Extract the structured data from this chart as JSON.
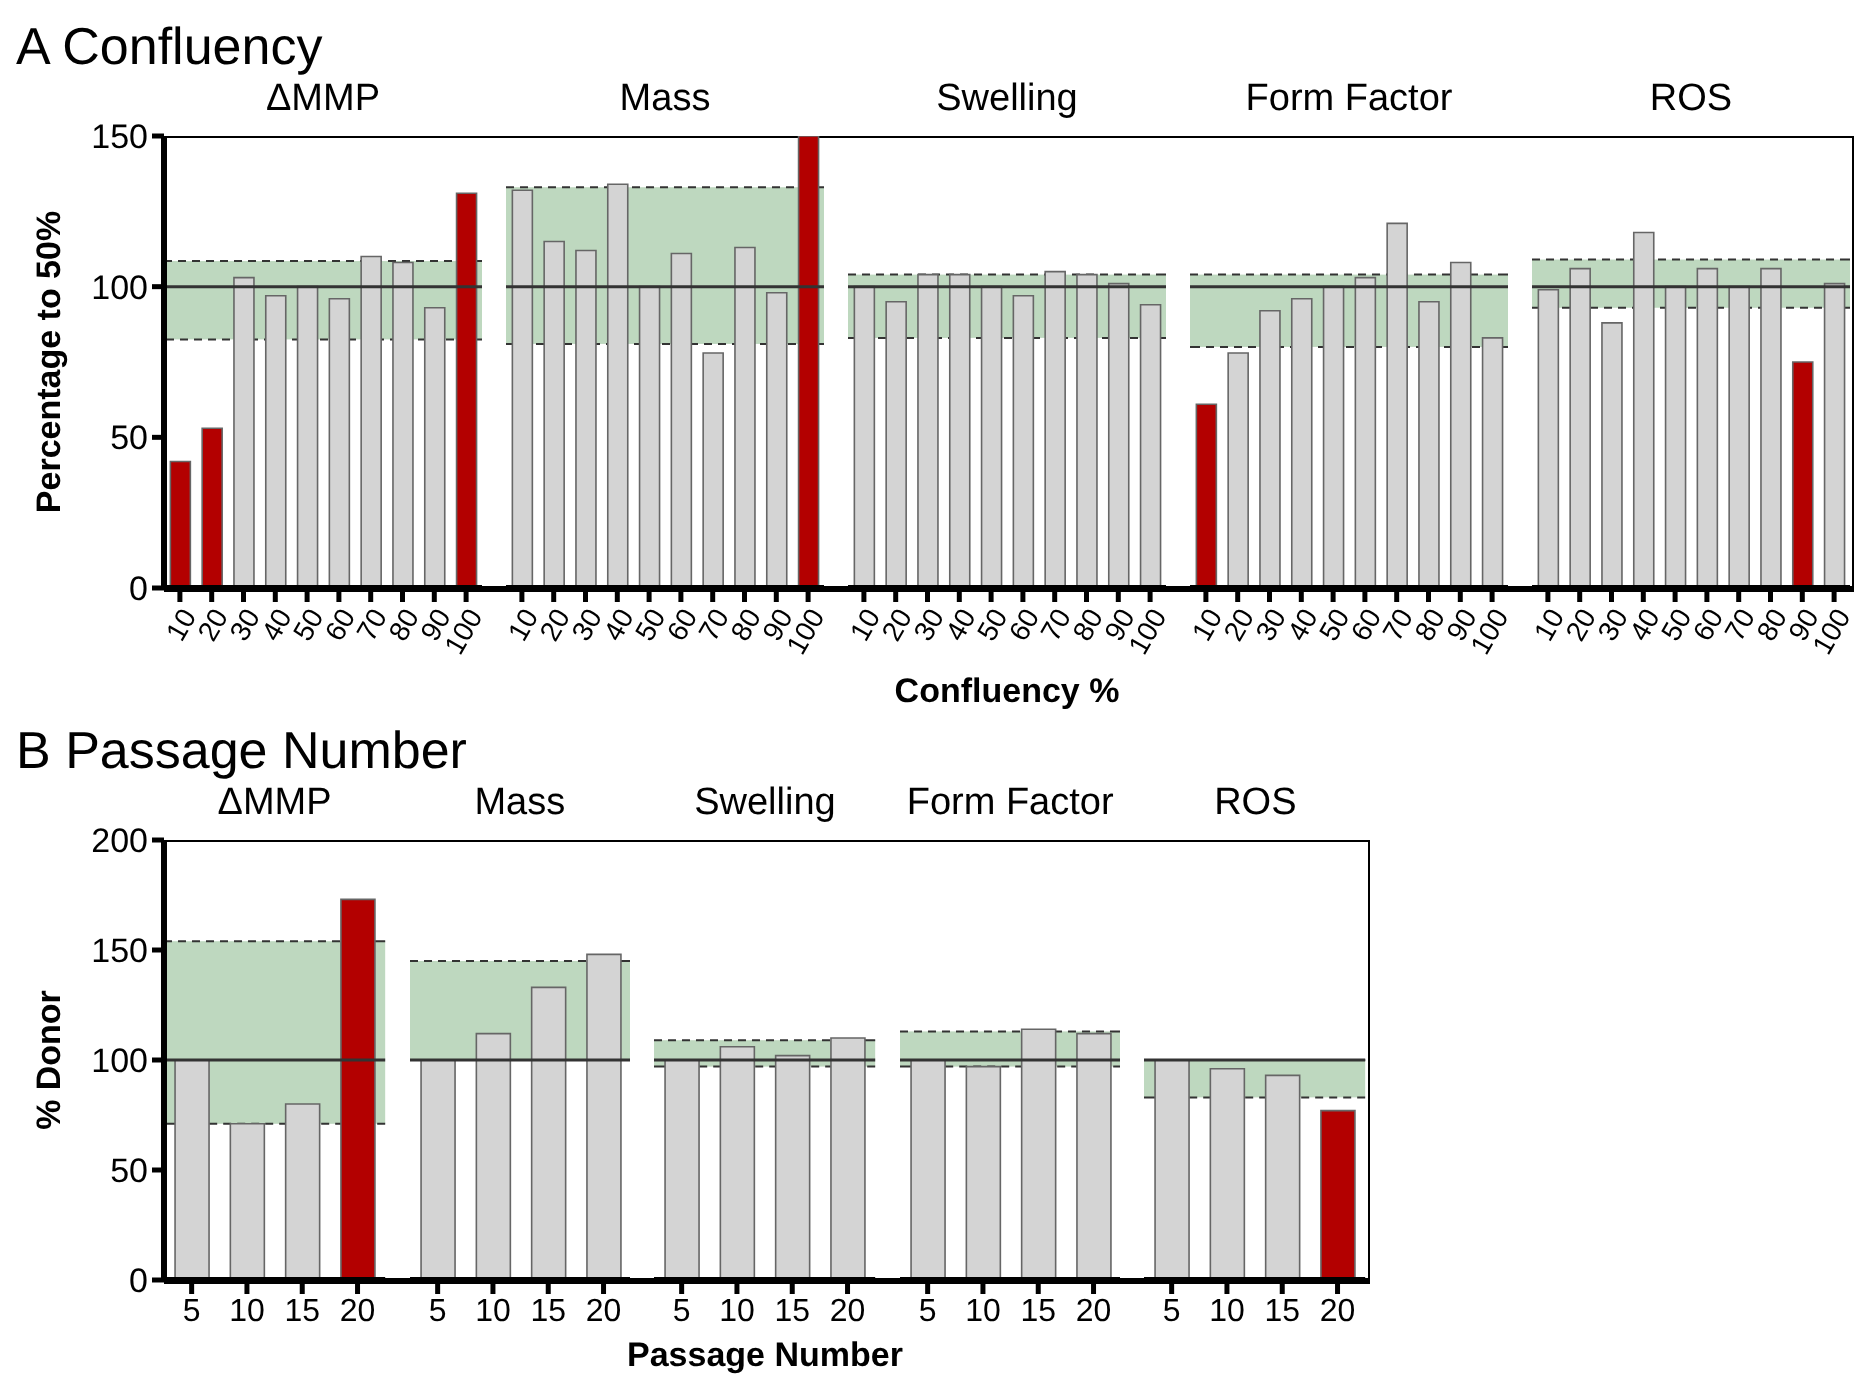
{
  "chart_data": [
    {
      "type": "other",
      "title": "A Confluency"
    },
    {
      "type": "bar",
      "title": "ΔMMP",
      "ylabel": "Percentage to 50%",
      "categories": [
        "10",
        "20",
        "30",
        "40",
        "50",
        "60",
        "70",
        "80",
        "90",
        "100"
      ],
      "values": [
        42,
        53,
        103,
        97,
        100,
        96,
        110,
        108,
        93,
        131
      ],
      "colors": [
        "#b30000",
        "#b30000",
        "#d4d4d4",
        "#d4d4d4",
        "#d4d4d4",
        "#d4d4d4",
        "#d4d4d4",
        "#d4d4d4",
        "#d4d4d4",
        "#b30000"
      ],
      "ylim": [
        0,
        150
      ],
      "yticks": [
        0,
        50,
        100,
        150
      ],
      "ref_lines": [
        {
          "axis": "y",
          "value": 100,
          "color": "#333333"
        }
      ],
      "bands": [
        {
          "axis": "y",
          "from": 82.5,
          "to": 108.5,
          "color": "#bed8bf"
        }
      ]
    },
    {
      "type": "bar",
      "title": "Mass",
      "categories": [
        "10",
        "20",
        "30",
        "40",
        "50",
        "60",
        "70",
        "80",
        "90",
        "100"
      ],
      "values": [
        132,
        115,
        112,
        134,
        100,
        111,
        78,
        113,
        98,
        150
      ],
      "colors": [
        "#d4d4d4",
        "#d4d4d4",
        "#d4d4d4",
        "#d4d4d4",
        "#d4d4d4",
        "#d4d4d4",
        "#d4d4d4",
        "#d4d4d4",
        "#d4d4d4",
        "#b30000"
      ],
      "ylim": [
        0,
        150
      ],
      "tick_labels": "x",
      "ref_lines": [
        {
          "axis": "y",
          "value": 100,
          "color": "#333333"
        }
      ],
      "bands": [
        {
          "axis": "y",
          "from": 81,
          "to": 133,
          "color": "#bed8bf"
        }
      ]
    },
    {
      "type": "bar",
      "title": "Swelling",
      "xlabel": "Confluency %",
      "categories": [
        "10",
        "20",
        "30",
        "40",
        "50",
        "60",
        "70",
        "80",
        "90",
        "100"
      ],
      "values": [
        100,
        95,
        104,
        104,
        100,
        97,
        105,
        104,
        101,
        94
      ],
      "colors": [
        "#d4d4d4",
        "#d4d4d4",
        "#d4d4d4",
        "#d4d4d4",
        "#d4d4d4",
        "#d4d4d4",
        "#d4d4d4",
        "#d4d4d4",
        "#d4d4d4",
        "#d4d4d4"
      ],
      "ylim": [
        0,
        150
      ],
      "tick_labels": "x",
      "ref_lines": [
        {
          "axis": "y",
          "value": 100,
          "color": "#333333"
        }
      ],
      "bands": [
        {
          "axis": "y",
          "from": 83,
          "to": 104,
          "color": "#bed8bf"
        }
      ]
    },
    {
      "type": "bar",
      "title": "Form Factor",
      "categories": [
        "10",
        "20",
        "30",
        "40",
        "50",
        "60",
        "70",
        "80",
        "90",
        "100"
      ],
      "values": [
        61,
        78,
        92,
        96,
        100,
        103,
        121,
        95,
        108,
        83
      ],
      "colors": [
        "#b30000",
        "#d4d4d4",
        "#d4d4d4",
        "#d4d4d4",
        "#d4d4d4",
        "#d4d4d4",
        "#d4d4d4",
        "#d4d4d4",
        "#d4d4d4",
        "#d4d4d4"
      ],
      "ylim": [
        0,
        150
      ],
      "tick_labels": "x",
      "ref_lines": [
        {
          "axis": "y",
          "value": 100,
          "color": "#333333"
        }
      ],
      "bands": [
        {
          "axis": "y",
          "from": 80,
          "to": 104,
          "color": "#bed8bf"
        }
      ]
    },
    {
      "type": "bar",
      "title": "ROS",
      "categories": [
        "10",
        "20",
        "30",
        "40",
        "50",
        "60",
        "70",
        "80",
        "90",
        "100"
      ],
      "values": [
        99,
        106,
        88,
        118,
        100,
        106,
        100,
        106,
        75,
        101
      ],
      "colors": [
        "#d4d4d4",
        "#d4d4d4",
        "#d4d4d4",
        "#d4d4d4",
        "#d4d4d4",
        "#d4d4d4",
        "#d4d4d4",
        "#d4d4d4",
        "#b30000",
        "#d4d4d4"
      ],
      "ylim": [
        0,
        150
      ],
      "tick_labels": "x",
      "ref_lines": [
        {
          "axis": "y",
          "value": 100,
          "color": "#333333"
        }
      ],
      "bands": [
        {
          "axis": "y",
          "from": 93,
          "to": 109,
          "color": "#bed8bf"
        }
      ]
    },
    {
      "type": "other",
      "title": "B Passage Number"
    },
    {
      "type": "bar",
      "title": "ΔMMP",
      "ylabel": "% Donor",
      "categories": [
        "5",
        "10",
        "15",
        "20"
      ],
      "values": [
        100,
        71,
        80,
        173
      ],
      "colors": [
        "#d4d4d4",
        "#d4d4d4",
        "#d4d4d4",
        "#b30000"
      ],
      "ylim": [
        0,
        200
      ],
      "yticks": [
        0,
        50,
        100,
        150,
        200
      ],
      "ref_lines": [
        {
          "axis": "y",
          "value": 100,
          "color": "#333333"
        }
      ],
      "bands": [
        {
          "axis": "y",
          "from": 71,
          "to": 154,
          "color": "#bed8bf"
        }
      ]
    },
    {
      "type": "bar",
      "title": "Mass",
      "categories": [
        "5",
        "10",
        "15",
        "20"
      ],
      "values": [
        100,
        112,
        133,
        148
      ],
      "colors": [
        "#d4d4d4",
        "#d4d4d4",
        "#d4d4d4",
        "#d4d4d4"
      ],
      "ylim": [
        0,
        200
      ],
      "tick_labels": "x",
      "ref_lines": [
        {
          "axis": "y",
          "value": 100,
          "color": "#333333"
        }
      ],
      "bands": [
        {
          "axis": "y",
          "from": 100,
          "to": 145,
          "color": "#bed8bf"
        }
      ]
    },
    {
      "type": "bar",
      "title": "Swelling",
      "xlabel": "Passage Number",
      "categories": [
        "5",
        "10",
        "15",
        "20"
      ],
      "values": [
        100,
        106,
        102,
        110
      ],
      "colors": [
        "#d4d4d4",
        "#d4d4d4",
        "#d4d4d4",
        "#d4d4d4"
      ],
      "ylim": [
        0,
        200
      ],
      "tick_labels": "x",
      "ref_lines": [
        {
          "axis": "y",
          "value": 100,
          "color": "#333333"
        }
      ],
      "bands": [
        {
          "axis": "y",
          "from": 97,
          "to": 109,
          "color": "#bed8bf"
        }
      ]
    },
    {
      "type": "bar",
      "title": "Form Factor",
      "categories": [
        "5",
        "10",
        "15",
        "20"
      ],
      "values": [
        100,
        97,
        114,
        112
      ],
      "colors": [
        "#d4d4d4",
        "#d4d4d4",
        "#d4d4d4",
        "#d4d4d4"
      ],
      "ylim": [
        0,
        200
      ],
      "tick_labels": "x",
      "ref_lines": [
        {
          "axis": "y",
          "value": 100,
          "color": "#333333"
        }
      ],
      "bands": [
        {
          "axis": "y",
          "from": 97,
          "to": 113,
          "color": "#bed8bf"
        }
      ]
    },
    {
      "type": "bar",
      "title": "ROS",
      "categories": [
        "5",
        "10",
        "15",
        "20"
      ],
      "values": [
        100,
        96,
        93,
        77
      ],
      "colors": [
        "#d4d4d4",
        "#d4d4d4",
        "#d4d4d4",
        "#b30000"
      ],
      "ylim": [
        0,
        200
      ],
      "tick_labels": "x",
      "ref_lines": [
        {
          "axis": "y",
          "value": 100,
          "color": "#333333"
        }
      ],
      "bands": [
        {
          "axis": "y",
          "from": 83,
          "to": 100,
          "color": "#bed8bf"
        }
      ]
    }
  ]
}
